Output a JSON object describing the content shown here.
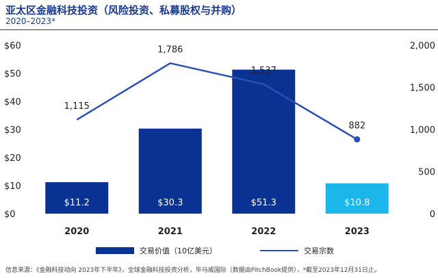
{
  "header": {
    "title": "亚太区金融科技投资（风险投资、私募股权与并购）",
    "subtitle": "2020–2023*"
  },
  "chart_data": {
    "type": "bar",
    "categories": [
      "2020",
      "2021",
      "2022",
      "2023"
    ],
    "series": [
      {
        "name": "交易价值（10亿美元）",
        "type": "bar",
        "axis": "left",
        "values": [
          11.2,
          30.3,
          51.3,
          10.8
        ],
        "labels": [
          "$11.2",
          "$30.3",
          "$51.3",
          "$10.8"
        ]
      },
      {
        "name": "交易宗数",
        "type": "line",
        "axis": "right",
        "values": [
          1115,
          1786,
          1537,
          882
        ],
        "labels": [
          "1,115",
          "1,786",
          "1,537",
          "882"
        ]
      }
    ],
    "left_axis": {
      "ylim": [
        0,
        60
      ],
      "ticks": [
        "$0",
        "$10",
        "$20",
        "$30",
        "$40",
        "$50",
        "$60"
      ]
    },
    "right_axis": {
      "ylim": [
        0,
        2000
      ],
      "ticks": [
        "0",
        "500",
        "1,000",
        "1,500",
        "2,000"
      ]
    },
    "bar_colors": [
      "#0a3292",
      "#0a3292",
      "#0a3292",
      "#1bb7ea"
    ],
    "line_color": "#2a4fb7",
    "legend_position": "bottom"
  },
  "footnote": "信息来源：《金融科技动向 2023年下半年》，全球金融科技投资分析，毕马威国际（数据由PitchBook提供），*截至2023年12月31日止。"
}
